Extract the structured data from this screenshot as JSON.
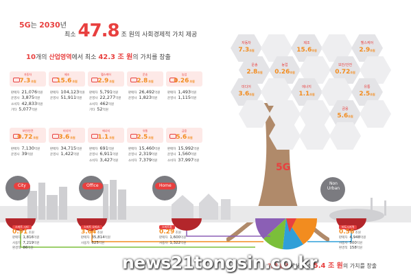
{
  "headline": {
    "lead_a": "5G",
    "lead_b": "는",
    "year": "2030",
    "year_suffix": "년",
    "prefix": "최소",
    "amount": "47.8",
    "suffix": "조 원의 사회경제적 가치 제공"
  },
  "subhead": {
    "count": "10",
    "count_suffix": "개의",
    "area": "산업영역",
    "mid": "에서 최소",
    "amount": "42.3 조 원",
    "tail": "의 가치를 창출"
  },
  "industries_row1": [
    {
      "name": "자동차",
      "value": "7.3",
      "unit": "조원",
      "stats": [
        [
          "판매자",
          "21,076"
        ],
        [
          "운영사",
          "3,875"
        ],
        [
          "소비자",
          "42,833"
        ],
        [
          "기타",
          "5,077"
        ]
      ]
    },
    {
      "name": "제조",
      "value": "15.6",
      "unit": "조원",
      "stats": [
        [
          "판매자",
          "104,123"
        ],
        [
          "운영사",
          "51,911"
        ]
      ]
    },
    {
      "name": "헬스케어",
      "value": "2.9",
      "unit": "조원",
      "stats": [
        [
          "판매자",
          "5,791"
        ],
        [
          "운영사",
          "22,277"
        ],
        [
          "소비자",
          "462"
        ],
        [
          "기타",
          "52"
        ]
      ]
    },
    {
      "name": "운송",
      "value": "2.8",
      "unit": "조원",
      "stats": [
        [
          "판매자",
          "26,492"
        ],
        [
          "운영사",
          "1,823"
        ]
      ]
    },
    {
      "name": "농업",
      "value": "0.26",
      "unit": "조원",
      "stats": [
        [
          "판매자",
          "1,493"
        ],
        [
          "운영사",
          "1,115"
        ]
      ]
    }
  ],
  "industries_row2": [
    {
      "name": "보안/안전",
      "value": "0.72",
      "unit": "조원",
      "stats": [
        [
          "판매자",
          "7,130"
        ],
        [
          "운영사",
          "39"
        ]
      ]
    },
    {
      "name": "미디어",
      "value": "3.6",
      "unit": "조원",
      "stats": [
        [
          "판매자",
          "34,715"
        ],
        [
          "운영사",
          "1,422"
        ]
      ]
    },
    {
      "name": "에너지",
      "value": "1.1",
      "unit": "조원",
      "stats": [
        [
          "판매자",
          "691"
        ],
        [
          "운영사",
          "6,911"
        ],
        [
          "소비자",
          "3,427"
        ]
      ]
    },
    {
      "name": "유통",
      "value": "2.5",
      "unit": "조원",
      "stats": [
        [
          "판매자",
          "15,460"
        ],
        [
          "운영사",
          "2,319"
        ],
        [
          "소비자",
          "7,379"
        ]
      ]
    },
    {
      "name": "금융",
      "value": "5.6",
      "unit": "조원",
      "stats": [
        [
          "판매자",
          "15,992"
        ],
        [
          "운영사",
          "1,560"
        ],
        [
          "소비자",
          "37,997"
        ]
      ]
    }
  ],
  "stat_unit": "억원",
  "tree_hexes": [
    {
      "name": "자동차",
      "value": "7.3"
    },
    {
      "name": "제조",
      "value": "15.6"
    },
    {
      "name": "헬스케어",
      "value": "2.9"
    },
    {
      "name": "운송",
      "value": "2.8"
    },
    {
      "name": "농업",
      "value": "0.26"
    },
    {
      "name": "보안/안전",
      "value": "0.72"
    },
    {
      "name": "미디어",
      "value": "3.6"
    },
    {
      "name": "에너지",
      "value": "1.1"
    },
    {
      "name": "유통",
      "value": "2.5"
    },
    {
      "name": "금융",
      "value": "5.6"
    }
  ],
  "hex_unit": "조원",
  "tree_label": "5G",
  "zones": {
    "city": "City",
    "office": "Office",
    "home": "Home",
    "nonurban_a": "Non",
    "nonurban_b": "Urban"
  },
  "bottom_cards": [
    {
      "title": "스마트 시티",
      "value": "0.91",
      "unit": "조원",
      "stats": [
        [
          "판매자",
          "1,816"
        ],
        [
          "사용자",
          "7,219"
        ],
        [
          "환경적",
          "86"
        ]
      ]
    },
    {
      "title": "스마트 오피스",
      "value": "3.64",
      "unit": "조원",
      "stats": [
        [
          "판매자",
          "35,814"
        ],
        [
          "사용자",
          "625"
        ]
      ]
    },
    {
      "title": "스마트홈",
      "value": "0.29",
      "unit": "조원",
      "stats": [
        [
          "판매자",
          "1,600"
        ],
        [
          "사용자",
          "1,322"
        ]
      ]
    },
    {
      "title": "비도시지역",
      "value": "0.56",
      "unit": "조원",
      "stats": [
        [
          "판매자",
          "4,948"
        ],
        [
          "사용자",
          "500"
        ],
        [
          "환경적",
          "158"
        ]
      ]
    }
  ],
  "footer": {
    "lead": "기반 환경",
    "mid": "에서 최소",
    "amount": "5.4 조 원",
    "tail": "의 가치를 창출"
  },
  "watermark": "news21tongsin.co.kr",
  "colors": {
    "accent": "#e8403f",
    "value": "#f28c1f",
    "trunk": "#b08a6a",
    "hex": "#e4e4e7",
    "pie": [
      "#e8403f",
      "#f28c1f",
      "#7bbf3a",
      "#2f9fd8",
      "#8b5fb5"
    ]
  }
}
